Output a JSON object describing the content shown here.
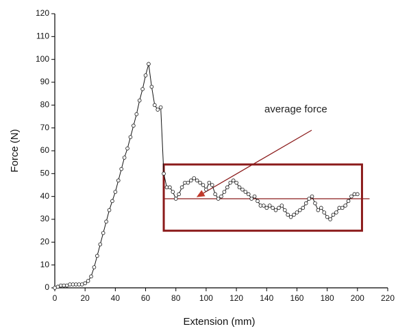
{
  "chart_data": {
    "type": "line",
    "xlabel": "Extension (mm)",
    "ylabel": "Force (N)",
    "annotation": "average force",
    "average_value": 39,
    "box": {
      "xlim": [
        72,
        203
      ],
      "ylim": [
        25,
        54
      ]
    },
    "xlim": [
      0,
      220
    ],
    "ylim": [
      0,
      120
    ],
    "xticks": [
      0,
      20,
      40,
      60,
      80,
      100,
      120,
      140,
      160,
      180,
      200,
      220
    ],
    "yticks": [
      0,
      10,
      20,
      30,
      40,
      50,
      60,
      70,
      80,
      90,
      100,
      110,
      120
    ],
    "color": "#111111",
    "box_color": "#8b1a1a",
    "x": [
      0,
      2,
      4,
      6,
      8,
      10,
      12,
      14,
      16,
      18,
      20,
      22,
      24,
      26,
      28,
      30,
      32,
      34,
      36,
      38,
      40,
      42,
      44,
      46,
      48,
      50,
      52,
      54,
      56,
      58,
      60,
      62,
      64,
      66,
      68,
      70,
      72,
      74,
      76,
      78,
      80,
      82,
      84,
      86,
      88,
      90,
      92,
      94,
      96,
      98,
      100,
      102,
      104,
      106,
      108,
      110,
      112,
      114,
      116,
      118,
      120,
      122,
      124,
      126,
      128,
      130,
      132,
      134,
      136,
      138,
      140,
      142,
      144,
      146,
      148,
      150,
      152,
      154,
      156,
      158,
      160,
      162,
      164,
      166,
      168,
      170,
      172,
      174,
      176,
      178,
      180,
      182,
      184,
      186,
      188,
      190,
      192,
      194,
      196,
      198,
      200
    ],
    "values": [
      0,
      0.5,
      1,
      1,
      1,
      1.5,
      1.5,
      1.5,
      1.5,
      1.5,
      2,
      3,
      5,
      9,
      14,
      19,
      24,
      29,
      34,
      38,
      42,
      47,
      52,
      57,
      61,
      66,
      71,
      76,
      82,
      87,
      93,
      98,
      88,
      80,
      78,
      79,
      50,
      44,
      44,
      42,
      39,
      41,
      44,
      46,
      46,
      47,
      48,
      47,
      46,
      45,
      43,
      46,
      45,
      41,
      39,
      40,
      42,
      44,
      46,
      47,
      46,
      44,
      43,
      42,
      41,
      39,
      40,
      38,
      36,
      36,
      35,
      36,
      35,
      34,
      35,
      36,
      34,
      32,
      31,
      32,
      33,
      34,
      35,
      37,
      39,
      40,
      37,
      34,
      35,
      33,
      31,
      30,
      32,
      33,
      35,
      35,
      36,
      38,
      40,
      41,
      41
    ]
  }
}
